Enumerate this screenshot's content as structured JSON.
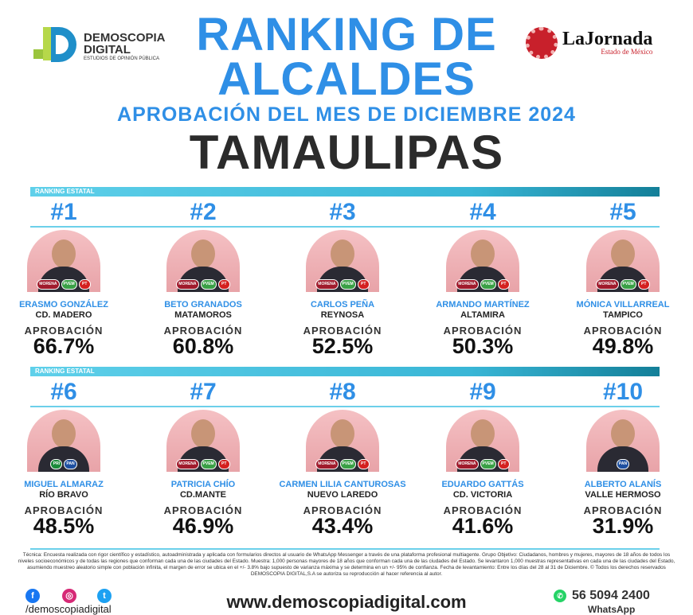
{
  "header": {
    "title_line1": "RANKING DE",
    "title_line2": "ALCALDES",
    "subtitle": "APROBACIÓN DEL MES DE DICIEMBRE 2024",
    "state": "TAMAULIPAS"
  },
  "logos": {
    "demoscopia_line1": "DEMOSCOPIA",
    "demoscopia_line2": "DIGITAL",
    "demoscopia_tag": "ESTUDIOS DE OPINIÓN PÚBLICA",
    "jornada": "LaJornada",
    "jornada_sub": "Estado de México"
  },
  "section_label": "RANKING ESTATAL",
  "approval_label": "APROBACIÓN",
  "mayors": [
    {
      "rank": "#1",
      "name": "ERASMO GONZÁLEZ",
      "city": "CD. MADERO",
      "approval": "66.7%",
      "parties": [
        "MORENA",
        "PVEM",
        "PT"
      ]
    },
    {
      "rank": "#2",
      "name": "BETO GRANADOS",
      "city": "MATAMOROS",
      "approval": "60.8%",
      "parties": [
        "MORENA",
        "PVEM",
        "PT"
      ]
    },
    {
      "rank": "#3",
      "name": "CARLOS PEÑA",
      "city": "REYNOSA",
      "approval": "52.5%",
      "parties": [
        "MORENA",
        "PVEM",
        "PT"
      ]
    },
    {
      "rank": "#4",
      "name": "ARMANDO MARTÍNEZ",
      "city": "ALTAMIRA",
      "approval": "50.3%",
      "parties": [
        "MORENA",
        "PVEM",
        "PT"
      ]
    },
    {
      "rank": "#5",
      "name": "MÓNICA VILLARREAL",
      "city": "TAMPICO",
      "approval": "49.8%",
      "parties": [
        "MORENA",
        "PVEM",
        "PT"
      ]
    },
    {
      "rank": "#6",
      "name": "MIGUEL ALMARAZ",
      "city": "RÍO BRAVO",
      "approval": "48.5%",
      "parties": [
        "PRI",
        "PAN"
      ]
    },
    {
      "rank": "#7",
      "name": "PATRICIA CHÍO",
      "city": "CD.MANTE",
      "approval": "46.9%",
      "parties": [
        "MORENA",
        "PVEM",
        "PT"
      ]
    },
    {
      "rank": "#8",
      "name": "CARMEN LILIA CANTUROSAS",
      "city": "NUEVO LAREDO",
      "approval": "43.4%",
      "parties": [
        "MORENA",
        "PVEM",
        "PT"
      ]
    },
    {
      "rank": "#9",
      "name": "EDUARDO GATTÁS",
      "city": "CD. VICTORIA",
      "approval": "41.6%",
      "parties": [
        "MORENA",
        "PVEM",
        "PT"
      ]
    },
    {
      "rank": "#10",
      "name": "ALBERTO ALANÍS",
      "city": "VALLE HERMOSO",
      "approval": "31.9%",
      "parties": [
        "PAN"
      ]
    }
  ],
  "footer": {
    "methodology": "Técnica: Encuesta realizada con rigor científico y estadístico, autoadministrada y aplicada con formularios directos al usuario de WhatsApp Messenger a través de una plataforma profesional multiagente. Grupo Objetivo: Ciudadanos, hombres y mujeres, mayores de 18 años de todos los niveles socioeconómicos y de todas las regiones que conforman cada una de las ciudades del Estado. Muestra: 1,000 personas mayores de 18 años que conforman cada una de las ciudades del Estado. Se levantaron 1,000 muestras representativas en cada una de las ciudades del Estado, asumiendo muestreo aleatorio simple con población infinita, el margen de error se ubica en el +/- 3.8% bajo supuesto de varianza máxima y se determina en un +/- 95% de confianza. Fecha de levantamiento: Entre los días del 28 al 31 de Diciembre. © Todos los derechos reservados DEMOSCOPIA DIGITAL,S.A se autoriza su reproducción al hacer referencia al autor.",
    "handle": "/demoscopiadigital",
    "website": "www.demoscopiadigital.com",
    "phone": "56 5094 2400",
    "whatsapp": "WhatsApp"
  }
}
